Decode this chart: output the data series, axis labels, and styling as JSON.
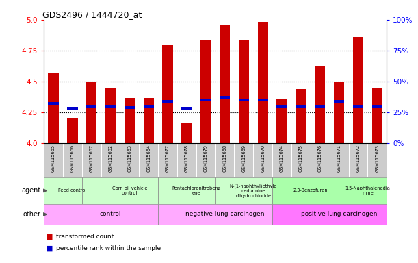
{
  "title": "GDS2496 / 1444720_at",
  "samples": [
    "GSM115665",
    "GSM115666",
    "GSM115667",
    "GSM115662",
    "GSM115663",
    "GSM115664",
    "GSM115677",
    "GSM115678",
    "GSM115679",
    "GSM115668",
    "GSM115669",
    "GSM115670",
    "GSM115674",
    "GSM115675",
    "GSM115676",
    "GSM115671",
    "GSM115672",
    "GSM115673"
  ],
  "red_values": [
    4.57,
    4.2,
    4.5,
    4.45,
    4.37,
    4.37,
    4.8,
    4.16,
    4.84,
    4.96,
    4.84,
    4.98,
    4.36,
    4.44,
    4.63,
    4.5,
    4.86,
    4.45
  ],
  "blue_values": [
    4.32,
    4.28,
    4.3,
    4.3,
    4.29,
    4.3,
    4.34,
    4.28,
    4.35,
    4.37,
    4.35,
    4.35,
    4.3,
    4.3,
    4.3,
    4.34,
    4.3,
    4.3
  ],
  "ylim": [
    4.0,
    5.0
  ],
  "yticks": [
    4.0,
    4.25,
    4.5,
    4.75,
    5.0
  ],
  "right_ylabels": [
    "0%",
    "25%",
    "50%",
    "75%",
    "100%"
  ],
  "dotted_lines": [
    4.25,
    4.5,
    4.75
  ],
  "bar_width": 0.55,
  "red_color": "#cc0000",
  "blue_color": "#0000cc",
  "agent_groups": [
    {
      "label": "Feed control",
      "start": 0,
      "end": 2,
      "color": "#ccffcc"
    },
    {
      "label": "Corn oil vehicle\ncontrol",
      "start": 2,
      "end": 6,
      "color": "#ccffcc"
    },
    {
      "label": "Pentachloronitrobenz\nene",
      "start": 6,
      "end": 9,
      "color": "#ccffcc"
    },
    {
      "label": "N-(1-naphthyl)ethyle\nnediamine\ndihydrochloride",
      "start": 9,
      "end": 12,
      "color": "#ccffcc"
    },
    {
      "label": "2,3-Benzofuran",
      "start": 12,
      "end": 15,
      "color": "#aaffaa"
    },
    {
      "label": "1,5-Naphthalenedia\nmine",
      "start": 15,
      "end": 18,
      "color": "#aaffaa"
    }
  ],
  "other_groups": [
    {
      "label": "control",
      "start": 0,
      "end": 6,
      "color": "#ffaaff"
    },
    {
      "label": "negative lung carcinogen",
      "start": 6,
      "end": 12,
      "color": "#ffaaff"
    },
    {
      "label": "positive lung carcinogen",
      "start": 12,
      "end": 18,
      "color": "#ff77ff"
    }
  ],
  "legend_red": "transformed count",
  "legend_blue": "percentile rank within the sample",
  "tick_bg_color": "#cccccc"
}
